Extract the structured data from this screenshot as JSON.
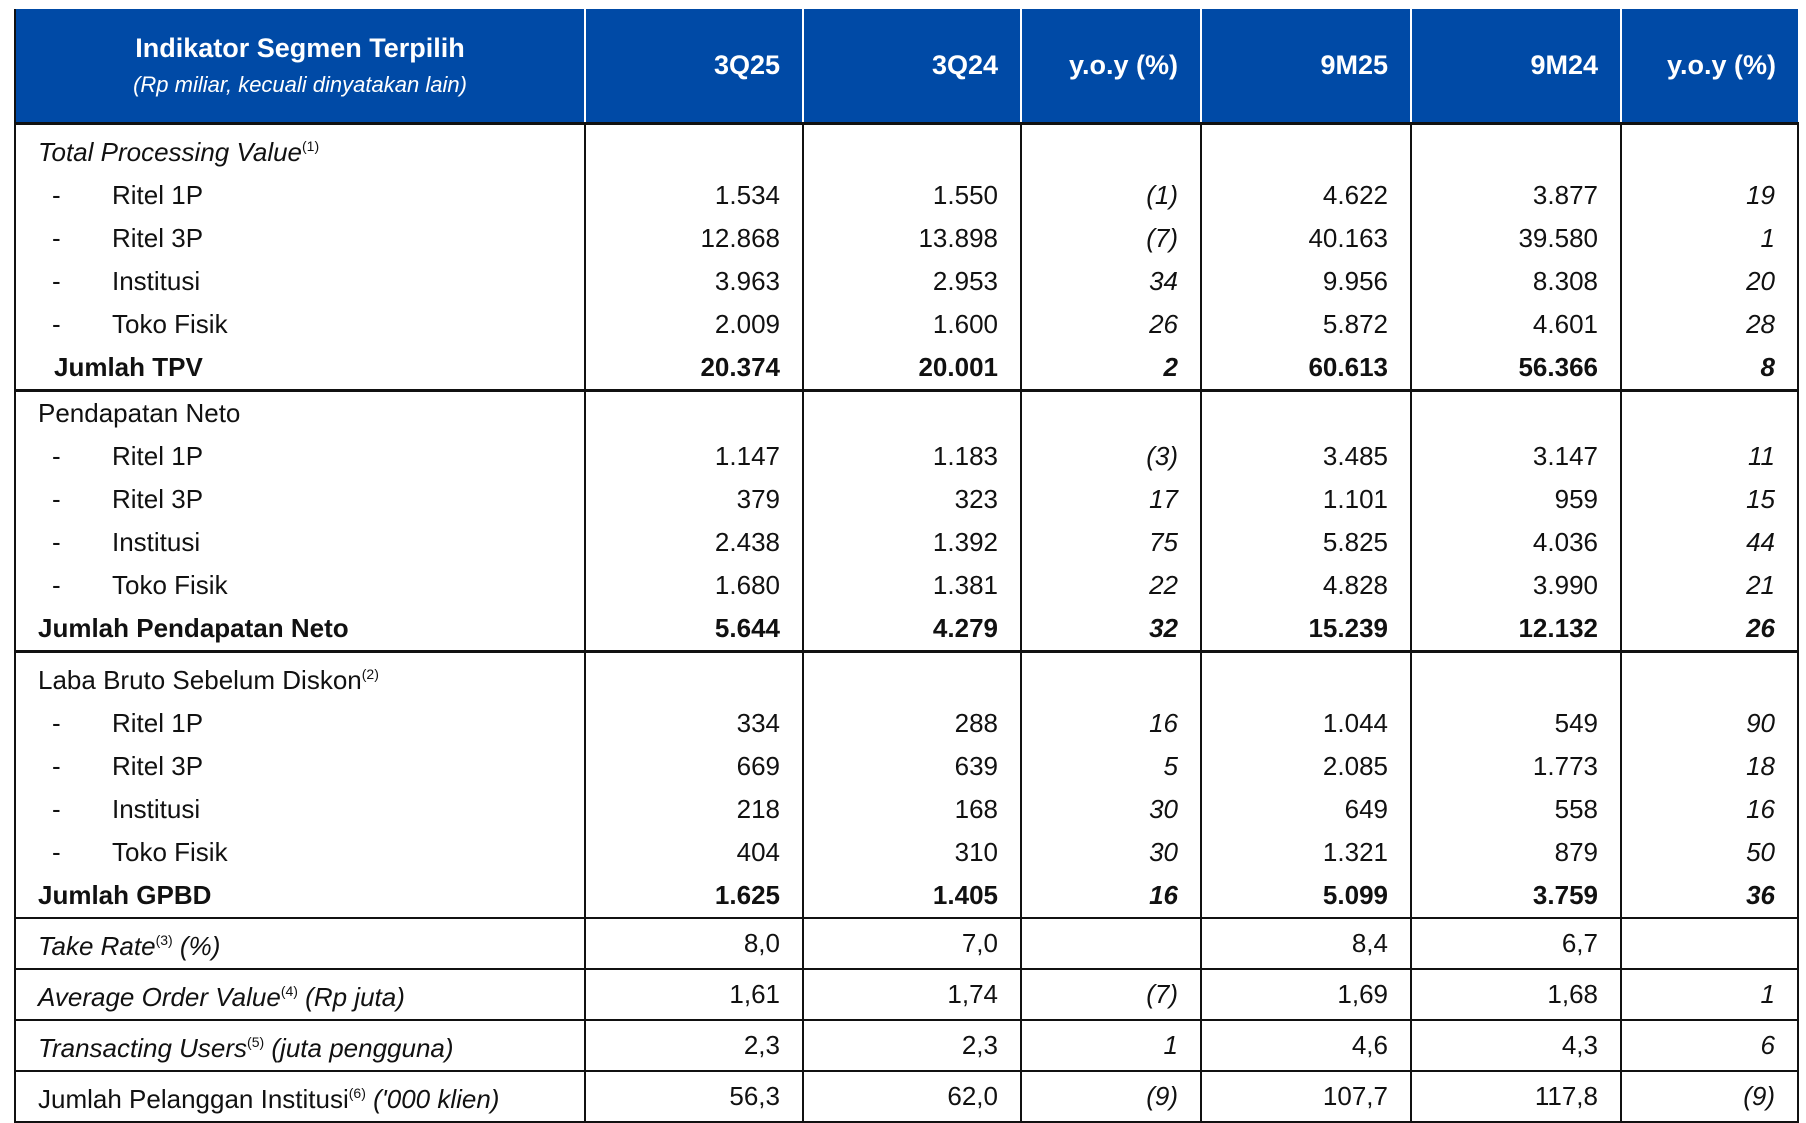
{
  "header": {
    "title": "Indikator Segmen Terpilih",
    "subtitle": "(Rp miliar, kecuali dinyatakan lain)",
    "columns": [
      "3Q25",
      "3Q24",
      "y.o.y (%)",
      "9M25",
      "9M24",
      "y.o.y (%)"
    ]
  },
  "colors": {
    "header_bg": "#004aa6",
    "header_text": "#ffffff"
  },
  "groups": [
    {
      "title": "Total Processing Value",
      "title_italic": true,
      "note": "(1)",
      "items": [
        {
          "label": "Ritel 1P",
          "values": [
            "1.534",
            "1.550",
            "(1)",
            "4.622",
            "3.877",
            "19"
          ]
        },
        {
          "label": "Ritel 3P",
          "values": [
            "12.868",
            "13.898",
            "(7)",
            "40.163",
            "39.580",
            "1"
          ]
        },
        {
          "label": "Institusi",
          "values": [
            "3.963",
            "2.953",
            "34",
            "9.956",
            "8.308",
            "20"
          ]
        },
        {
          "label": "Toko Fisik",
          "values": [
            "2.009",
            "1.600",
            "26",
            "5.872",
            "4.601",
            "28"
          ]
        }
      ],
      "total": {
        "label": "Jumlah TPV",
        "values": [
          "20.374",
          "20.001",
          "2",
          "60.613",
          "56.366",
          "8"
        ]
      }
    },
    {
      "title": "Pendapatan Neto",
      "title_italic": false,
      "note": "",
      "items": [
        {
          "label": "Ritel 1P",
          "values": [
            "1.147",
            "1.183",
            "(3)",
            "3.485",
            "3.147",
            "11"
          ]
        },
        {
          "label": "Ritel 3P",
          "values": [
            "379",
            "323",
            "17",
            "1.101",
            "959",
            "15"
          ]
        },
        {
          "label": "Institusi",
          "values": [
            "2.438",
            "1.392",
            "75",
            "5.825",
            "4.036",
            "44"
          ]
        },
        {
          "label": "Toko Fisik",
          "values": [
            "1.680",
            "1.381",
            "22",
            "4.828",
            "3.990",
            "21"
          ]
        }
      ],
      "total": {
        "label": "Jumlah Pendapatan Neto",
        "values": [
          "5.644",
          "4.279",
          "32",
          "15.239",
          "12.132",
          "26"
        ]
      }
    },
    {
      "title": "Laba Bruto Sebelum Diskon",
      "title_italic": false,
      "note": "(2)",
      "items": [
        {
          "label": "Ritel 1P",
          "values": [
            "334",
            "288",
            "16",
            "1.044",
            "549",
            "90"
          ]
        },
        {
          "label": "Ritel 3P",
          "values": [
            "669",
            "639",
            "5",
            "2.085",
            "1.773",
            "18"
          ]
        },
        {
          "label": "Institusi",
          "values": [
            "218",
            "168",
            "30",
            "649",
            "558",
            "16"
          ]
        },
        {
          "label": "Toko Fisik",
          "values": [
            "404",
            "310",
            "30",
            "1.321",
            "879",
            "50"
          ]
        }
      ],
      "total": {
        "label": "Jumlah GPBD",
        "values": [
          "1.625",
          "1.405",
          "16",
          "5.099",
          "3.759",
          "36"
        ]
      }
    }
  ],
  "dash": "-",
  "singles": [
    {
      "label": "Take Rate",
      "label_italic": true,
      "note": "(3)",
      "suffix": "(%)",
      "values": [
        "8,0",
        "7,0",
        "",
        "8,4",
        "6,7",
        ""
      ]
    },
    {
      "label": "Average Order Value",
      "label_italic": true,
      "note": "(4)",
      "suffix": "(Rp juta)",
      "values": [
        "1,61",
        "1,74",
        "(7)",
        "1,69",
        "1,68",
        "1"
      ]
    },
    {
      "label": "Transacting Users",
      "label_italic": true,
      "note": "(5)",
      "suffix": "(juta pengguna)",
      "values": [
        "2,3",
        "2,3",
        "1",
        "4,6",
        "4,3",
        "6"
      ]
    },
    {
      "label": "Jumlah Pelanggan Institusi",
      "label_italic": false,
      "note": "(6)",
      "suffix": "('000 klien)",
      "values": [
        "56,3",
        "62,0",
        "(9)",
        "107,7",
        "117,8",
        "(9)"
      ]
    }
  ]
}
